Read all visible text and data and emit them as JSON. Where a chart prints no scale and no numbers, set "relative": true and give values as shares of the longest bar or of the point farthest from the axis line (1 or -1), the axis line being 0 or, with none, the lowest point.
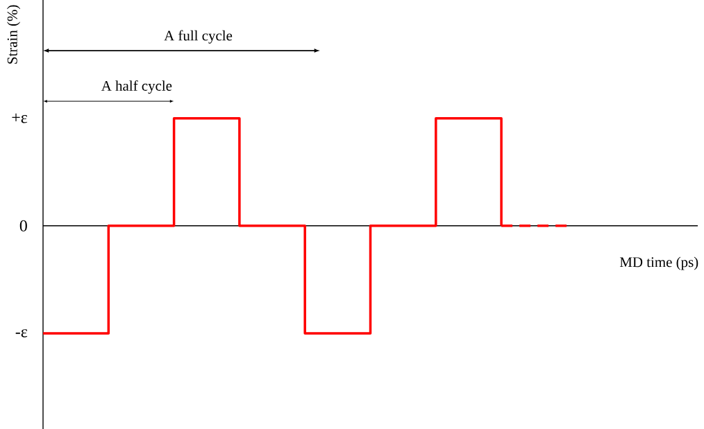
{
  "chart_data": {
    "type": "step",
    "relative": true,
    "xlabel": "MD time (ps)",
    "ylabel": "Strain (%)",
    "categories": [
      null,
      null,
      null,
      null,
      null,
      null,
      null,
      null,
      null
    ],
    "annotations": [
      "A full cycle",
      "A half cycle",
      "+ε",
      "0",
      "-ε"
    ],
    "series": [
      {
        "color": "#ff0000",
        "line_style": "solid",
        "values": [
          -1,
          0,
          1,
          0,
          -1,
          0,
          1,
          0,
          null
        ]
      },
      {
        "type": "line",
        "color": "#ff0000",
        "line_style": "dashed",
        "values": [
          null,
          null,
          null,
          null,
          null,
          null,
          null,
          0,
          0
        ]
      }
    ]
  }
}
